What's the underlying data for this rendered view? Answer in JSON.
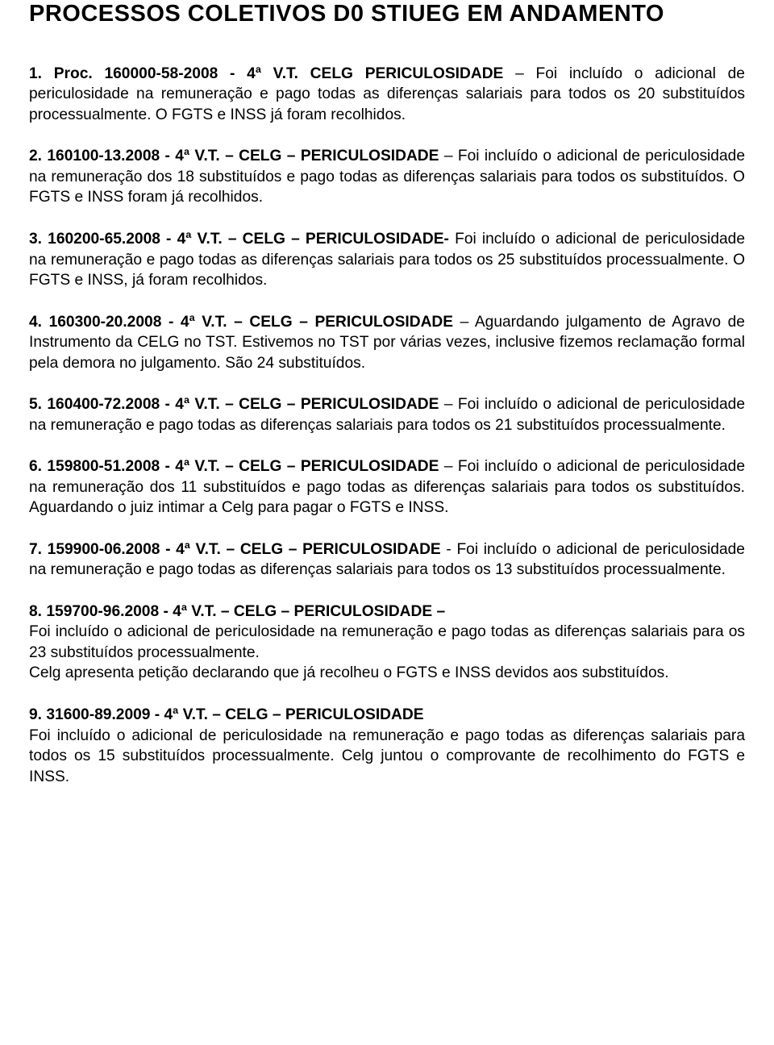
{
  "title": "PROCESSOS COLETIVOS D0 STIUEG EM ANDAMENTO",
  "items": [
    {
      "num": "1.",
      "proc": "Proc. 160000-58-2008 - 4ª V.T. CELG PERICULOSIDADE",
      "sep": " – ",
      "body": "Foi incluído o adicional de periculosidade na remuneração e pago todas as diferenças salariais para todos os 20 substituídos processualmente. O FGTS e INSS já foram recolhidos."
    },
    {
      "num": "2.",
      "proc": "160100-13.2008 - 4ª V.T. – CELG – PERICULOSIDADE",
      "sep": " – ",
      "body": "Foi incluído o adicional de periculosidade na remuneração dos 18 substituídos e pago todas as diferenças salariais para todos os substituídos. O FGTS e INSS foram já recolhidos."
    },
    {
      "num": "3.",
      "proc": "160200-65.2008 - 4ª V.T. – CELG – PERICULOSIDADE-",
      "sep": " ",
      "body": "Foi incluído o adicional de periculosidade na remuneração e pago todas as diferenças salariais para todos os 25 substituídos processualmente. O FGTS e INSS, já foram recolhidos."
    },
    {
      "num": "4.",
      "proc": "160300-20.2008 - 4ª V.T. – CELG – PERICULOSIDADE",
      "sep": " – ",
      "body": "Aguardando julgamento de Agravo de Instrumento da CELG no TST. Estivemos no TST por várias vezes, inclusive fizemos reclamação formal pela demora no julgamento. São 24 substituídos."
    },
    {
      "num": "5.",
      "proc": "160400-72.2008 - 4ª V.T. – CELG – PERICULOSIDADE",
      "sep": " – ",
      "body": "Foi incluído o adicional de periculosidade na remuneração e pago todas as diferenças salariais para todos os 21 substituídos processualmente."
    },
    {
      "num": "6.",
      "proc": "159800-51.2008 - 4ª V.T. – CELG – PERICULOSIDADE",
      "sep": " – ",
      "body": "Foi incluído o adicional de periculosidade na remuneração dos 11 substituídos e pago todas as diferenças salariais para todos os substituídos. Aguardando o juiz intimar a Celg para pagar o FGTS e INSS."
    },
    {
      "num": "7.",
      "proc": "159900-06.2008 - 4ª V.T. – CELG – PERICULOSIDADE",
      "sep": " - ",
      "body": "Foi incluído o adicional de periculosidade na remuneração e pago todas as diferenças salariais para todos os 13 substituídos processualmente."
    },
    {
      "num": "8.",
      "proc": "159700-96.2008 - 4ª V.T. – CELG – PERICULOSIDADE –",
      "sep": "",
      "body_lines": [
        "Foi incluído o adicional de periculosidade na remuneração e pago todas as diferenças salariais para os 23 substituídos processualmente.",
        "Celg apresenta petição declarando que já recolheu o FGTS e INSS devidos aos substituídos."
      ]
    },
    {
      "num": "9.",
      "proc": "31600-89.2009 - 4ª V.T. – CELG – PERICULOSIDADE",
      "sep": "",
      "body_lines": [
        "Foi incluído o adicional de periculosidade na remuneração e pago todas as diferenças salariais para todos os 15 substituídos processualmente. Celg juntou o comprovante de recolhimento do FGTS e INSS."
      ]
    }
  ]
}
